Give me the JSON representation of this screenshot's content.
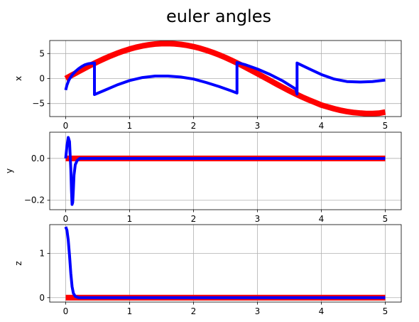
{
  "figure": {
    "title": "euler angles"
  },
  "colors": {
    "reference": "#ff0000",
    "actual": "#0000ff",
    "grid": "#b0b0b0",
    "axes": "#000000"
  },
  "chart_data": [
    {
      "type": "line",
      "ylabel": "x",
      "xlim": [
        -0.25,
        5.25
      ],
      "ylim": [
        -7.6,
        7.6
      ],
      "xticks": [
        0,
        1,
        2,
        3,
        4,
        5
      ],
      "yticks": [
        -5,
        0,
        5
      ],
      "grid": true,
      "series": [
        {
          "color": "#ff0000",
          "width": 8,
          "x": [
            0,
            0.1,
            0.2,
            0.3,
            0.4,
            0.5,
            0.6,
            0.7,
            0.8,
            0.9,
            1.0,
            1.1,
            1.2,
            1.3,
            1.4,
            1.5,
            1.6,
            1.7,
            1.8,
            1.9,
            2.0,
            2.1,
            2.2,
            2.3,
            2.4,
            2.5,
            2.6,
            2.7,
            2.8,
            2.9,
            3.0,
            3.1,
            3.2,
            3.3,
            3.4,
            3.5,
            3.6,
            3.7,
            3.8,
            3.9,
            4.0,
            4.1,
            4.2,
            4.3,
            4.4,
            4.5,
            4.6,
            4.7,
            4.8,
            4.9,
            5.0
          ],
          "y": [
            0.0,
            0.7,
            1.39,
            2.07,
            2.73,
            3.36,
            3.95,
            4.51,
            5.02,
            5.48,
            5.89,
            6.24,
            6.52,
            6.74,
            6.9,
            6.98,
            7.0,
            6.94,
            6.82,
            6.63,
            6.37,
            6.05,
            5.66,
            5.22,
            4.73,
            4.19,
            3.6,
            2.99,
            2.34,
            1.66,
            0.99,
            0.29,
            -0.41,
            -1.11,
            -1.79,
            -2.46,
            -3.09,
            -3.69,
            -4.25,
            -4.77,
            -5.3,
            -5.67,
            -6.04,
            -6.35,
            -6.6,
            -6.78,
            -6.9,
            -6.99,
            -6.99,
            -6.93,
            -6.71
          ]
        },
        {
          "color": "#0000ff",
          "width": 4,
          "x": [
            0,
            0.02,
            0.05,
            0.1,
            0.15,
            0.2,
            0.25,
            0.3,
            0.35,
            0.4,
            0.45,
            0.45,
            0.6,
            0.8,
            1.0,
            1.2,
            1.4,
            1.6,
            1.8,
            2.0,
            2.2,
            2.4,
            2.6,
            2.68,
            2.68,
            2.8,
            3.0,
            3.2,
            3.4,
            3.6,
            3.62,
            3.62,
            3.8,
            4.0,
            4.2,
            4.4,
            4.6,
            4.8,
            5.0
          ],
          "y": [
            -2.3,
            -1.3,
            -0.3,
            0.7,
            1.4,
            1.95,
            2.4,
            2.75,
            2.95,
            3.05,
            3.1,
            -3.2,
            -2.4,
            -1.3,
            -0.4,
            0.2,
            0.5,
            0.5,
            0.3,
            -0.1,
            -0.8,
            -1.6,
            -2.5,
            -2.9,
            3.2,
            2.8,
            1.9,
            0.8,
            -0.5,
            -2.1,
            -3.1,
            3.1,
            2.0,
            0.8,
            -0.1,
            -0.6,
            -0.7,
            -0.6,
            -0.3
          ]
        }
      ]
    },
    {
      "type": "line",
      "ylabel": "y",
      "xlim": [
        -0.25,
        5.25
      ],
      "ylim": [
        -0.245,
        0.125
      ],
      "xticks": [
        0,
        1,
        2,
        3,
        4,
        5
      ],
      "yticks": [
        -0.2,
        0.0
      ],
      "ytick_labels": [
        "−0.2",
        "0.0"
      ],
      "grid": true,
      "series": [
        {
          "color": "#ff0000",
          "width": 8,
          "x": [
            0,
            5.0
          ],
          "y": [
            0,
            0
          ]
        },
        {
          "color": "#0000ff",
          "width": 4,
          "x": [
            0,
            0.02,
            0.04,
            0.06,
            0.08,
            0.09,
            0.1,
            0.11,
            0.12,
            0.13,
            0.15,
            0.18,
            0.22,
            0.3,
            0.5,
            1,
            2,
            3,
            4,
            5
          ],
          "y": [
            0,
            0.06,
            0.1,
            0.08,
            -0.05,
            -0.15,
            -0.22,
            -0.21,
            -0.15,
            -0.08,
            -0.03,
            -0.01,
            0.0,
            0,
            0,
            0,
            0,
            0,
            0,
            0
          ]
        }
      ]
    },
    {
      "type": "line",
      "ylabel": "z",
      "xlim": [
        -0.25,
        5.25
      ],
      "ylim": [
        -0.1,
        1.65
      ],
      "xticks": [
        0,
        1,
        2,
        3,
        4,
        5
      ],
      "yticks": [
        0,
        1
      ],
      "grid": true,
      "series": [
        {
          "color": "#ff0000",
          "width": 8,
          "x": [
            0,
            5.0
          ],
          "y": [
            0,
            0
          ]
        },
        {
          "color": "#0000ff",
          "width": 4,
          "x": [
            0,
            0.02,
            0.04,
            0.06,
            0.08,
            0.1,
            0.12,
            0.15,
            0.2,
            0.3,
            0.5,
            1,
            2,
            3,
            4,
            5
          ],
          "y": [
            1.6,
            1.52,
            1.3,
            0.95,
            0.55,
            0.25,
            0.1,
            0.03,
            0.0,
            0,
            0,
            0,
            0,
            0,
            0,
            0
          ]
        }
      ]
    }
  ]
}
